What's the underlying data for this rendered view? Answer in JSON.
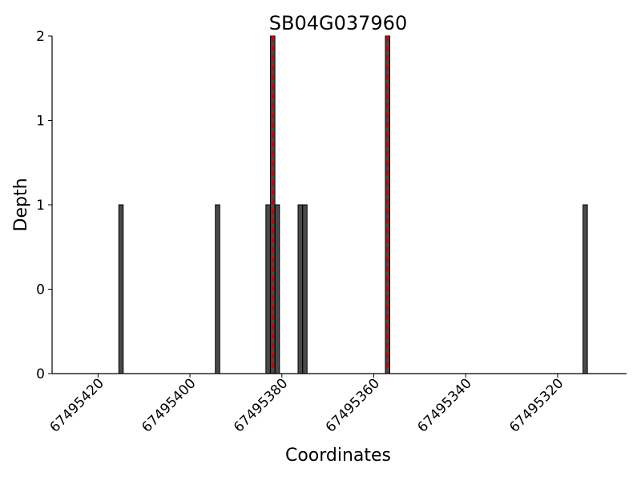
{
  "chart_data": {
    "type": "bar",
    "title": "SB04G037960",
    "xlabel": "Coordinates",
    "ylabel": "Depth",
    "x_reversed": true,
    "xlim": [
      67495430,
      67495305
    ],
    "ylim": [
      0,
      2
    ],
    "x_ticks": [
      67495420,
      67495400,
      67495380,
      67495360,
      67495340,
      67495320
    ],
    "y_tick_labels": [
      "0",
      "0",
      "1",
      "1",
      "2"
    ],
    "bars": [
      {
        "x": 67495415,
        "depth": 1
      },
      {
        "x": 67495394,
        "depth": 1
      },
      {
        "x": 67495383,
        "depth": 1
      },
      {
        "x": 67495382,
        "depth": 2
      },
      {
        "x": 67495381,
        "depth": 1
      },
      {
        "x": 67495376,
        "depth": 1
      },
      {
        "x": 67495375,
        "depth": 1
      },
      {
        "x": 67495357,
        "depth": 2
      },
      {
        "x": 67495314,
        "depth": 1
      }
    ],
    "bar_color": "#4a4a4a",
    "markers": [
      67495382,
      67495357
    ],
    "marker_color": "#cc0000",
    "grid": false,
    "legend": "none"
  }
}
